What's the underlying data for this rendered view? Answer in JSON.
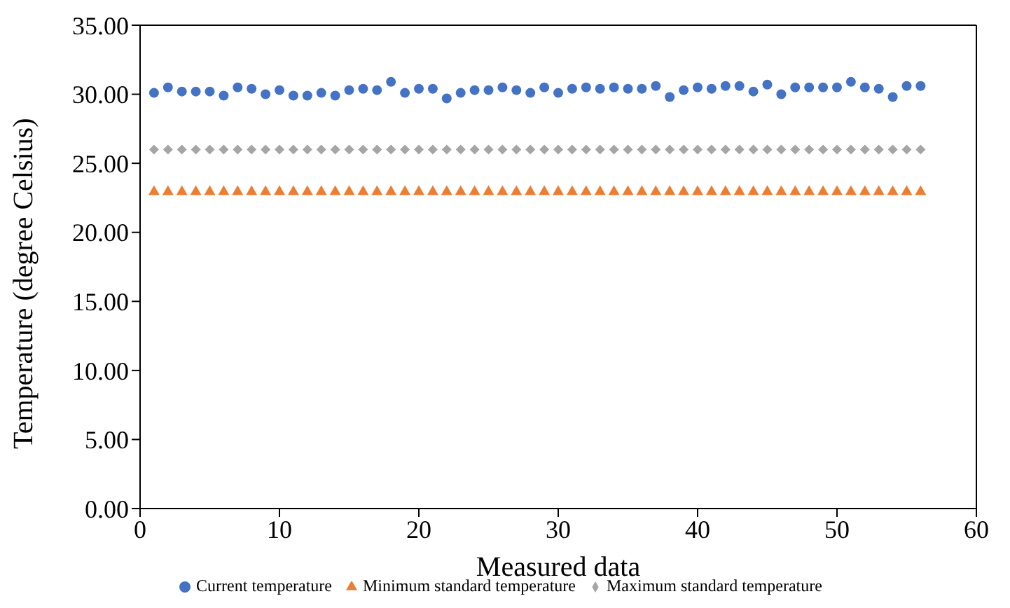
{
  "chart_data": {
    "type": "scatter",
    "xlabel": "Measured data",
    "ylabel": "Temperature (degree Celsius)",
    "x": [
      1,
      2,
      3,
      4,
      5,
      6,
      7,
      8,
      9,
      10,
      11,
      12,
      13,
      14,
      15,
      16,
      17,
      18,
      19,
      20,
      21,
      22,
      23,
      24,
      25,
      26,
      27,
      28,
      29,
      30,
      31,
      32,
      33,
      34,
      35,
      36,
      37,
      38,
      39,
      40,
      41,
      42,
      43,
      44,
      45,
      46,
      47,
      48,
      49,
      50,
      51,
      52,
      53,
      54,
      55,
      56
    ],
    "series": [
      {
        "name": "Current temperature",
        "color": "#4472c4",
        "marker": "circle",
        "values": [
          30.1,
          30.5,
          30.2,
          30.2,
          30.2,
          29.9,
          30.5,
          30.4,
          30.0,
          30.3,
          29.9,
          29.9,
          30.1,
          29.9,
          30.3,
          30.4,
          30.3,
          30.9,
          30.1,
          30.4,
          30.4,
          29.7,
          30.1,
          30.3,
          30.3,
          30.5,
          30.3,
          30.1,
          30.5,
          30.1,
          30.4,
          30.5,
          30.4,
          30.5,
          30.4,
          30.4,
          30.6,
          29.8,
          30.3,
          30.5,
          30.4,
          30.6,
          30.6,
          30.2,
          30.7,
          30.0,
          30.5,
          30.5,
          30.5,
          30.5,
          30.9,
          30.5,
          30.4,
          29.8,
          30.6,
          30.6
        ]
      },
      {
        "name": "Minimum standard temperature",
        "color": "#ed7d31",
        "marker": "triangle",
        "values": [
          23,
          23,
          23,
          23,
          23,
          23,
          23,
          23,
          23,
          23,
          23,
          23,
          23,
          23,
          23,
          23,
          23,
          23,
          23,
          23,
          23,
          23,
          23,
          23,
          23,
          23,
          23,
          23,
          23,
          23,
          23,
          23,
          23,
          23,
          23,
          23,
          23,
          23,
          23,
          23,
          23,
          23,
          23,
          23,
          23,
          23,
          23,
          23,
          23,
          23,
          23,
          23,
          23,
          23,
          23,
          23
        ]
      },
      {
        "name": "Maximum standard temperature",
        "color": "#a5a5a5",
        "marker": "diamond",
        "values": [
          26,
          26,
          26,
          26,
          26,
          26,
          26,
          26,
          26,
          26,
          26,
          26,
          26,
          26,
          26,
          26,
          26,
          26,
          26,
          26,
          26,
          26,
          26,
          26,
          26,
          26,
          26,
          26,
          26,
          26,
          26,
          26,
          26,
          26,
          26,
          26,
          26,
          26,
          26,
          26,
          26,
          26,
          26,
          26,
          26,
          26,
          26,
          26,
          26,
          26,
          26,
          26,
          26,
          26,
          26,
          26
        ]
      }
    ],
    "xlim": [
      0,
      60
    ],
    "xticks": [
      0,
      10,
      20,
      30,
      40,
      50,
      60
    ],
    "ylim": [
      0,
      35
    ],
    "yticks": [
      {
        "value": 0,
        "label": "0.00"
      },
      {
        "value": 5,
        "label": "5.00"
      },
      {
        "value": 10,
        "label": "10.00"
      },
      {
        "value": 15,
        "label": "15.00"
      },
      {
        "value": 20,
        "label": "20.00"
      },
      {
        "value": 25,
        "label": "25.00"
      },
      {
        "value": 30,
        "label": "30.00"
      },
      {
        "value": 35,
        "label": "35.00"
      }
    ],
    "grid": false,
    "legend": "bottom"
  }
}
